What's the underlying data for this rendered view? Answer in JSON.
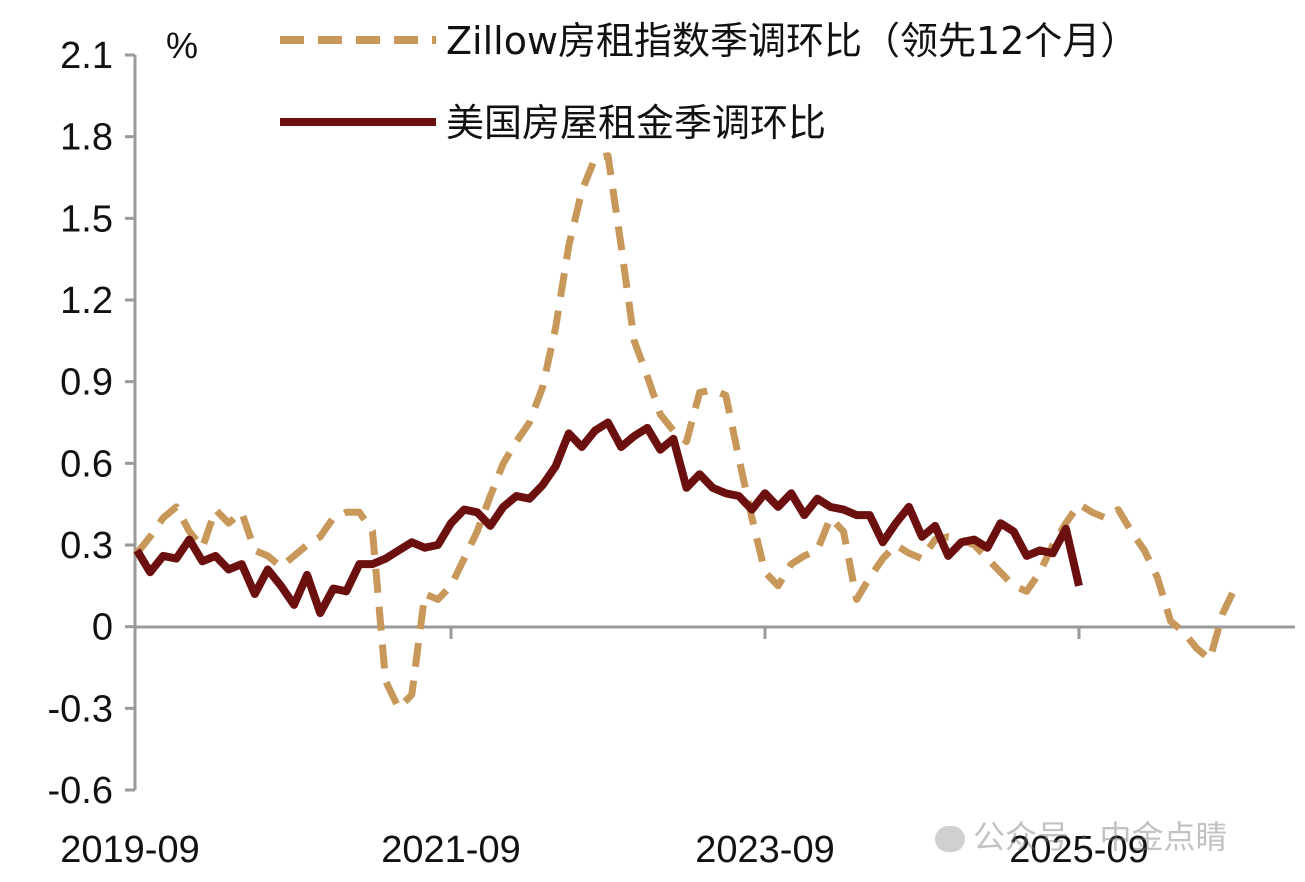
{
  "chart_data": {
    "type": "line",
    "unit": "%",
    "ylim": [
      -0.6,
      2.1
    ],
    "yticks": [
      "2.1",
      "1.8",
      "1.5",
      "1.2",
      "0.9",
      "0.6",
      "0.3",
      "0",
      "-0.3",
      "-0.6"
    ],
    "ytick_values": [
      2.1,
      1.8,
      1.5,
      1.2,
      0.9,
      0.6,
      0.3,
      0,
      -0.3,
      -0.6
    ],
    "xticks": [
      "2019-09",
      "2021-09",
      "2023-09",
      "2025-09"
    ],
    "x_range": [
      "2019-09",
      "2026-12"
    ],
    "grid": false,
    "legend_position": "top",
    "series": [
      {
        "name": "Zillow房租指数季调环比（领先12个月）",
        "style": "dashed",
        "color": "#c8975a",
        "x_start": "2019-09",
        "values": [
          0.27,
          0.33,
          0.4,
          0.44,
          0.35,
          0.29,
          0.43,
          0.38,
          0.42,
          0.28,
          0.26,
          0.22,
          0.26,
          0.3,
          0.33,
          0.4,
          0.42,
          0.42,
          0.35,
          -0.2,
          -0.3,
          -0.25,
          0.12,
          0.1,
          0.15,
          0.25,
          0.35,
          0.48,
          0.6,
          0.68,
          0.75,
          0.88,
          1.1,
          1.4,
          1.6,
          1.72,
          1.73,
          1.4,
          1.05,
          0.92,
          0.78,
          0.72,
          0.68,
          0.86,
          0.87,
          0.85,
          0.62,
          0.4,
          0.2,
          0.15,
          0.23,
          0.26,
          0.28,
          0.4,
          0.35,
          0.1,
          0.18,
          0.25,
          0.3,
          0.27,
          0.25,
          0.32,
          0.33,
          0.32,
          0.3,
          0.25,
          0.2,
          0.15,
          0.13,
          0.2,
          0.3,
          0.38,
          0.45,
          0.42,
          0.4,
          0.43,
          0.35,
          0.28,
          0.18,
          0.02,
          -0.02,
          -0.08,
          -0.12,
          0.05,
          0.15
        ]
      },
      {
        "name": "美国房屋租金季调环比",
        "style": "solid",
        "color": "#6b0f0f",
        "x_start": "2019-09",
        "values": [
          0.28,
          0.2,
          0.26,
          0.25,
          0.32,
          0.24,
          0.26,
          0.21,
          0.23,
          0.12,
          0.21,
          0.15,
          0.08,
          0.19,
          0.05,
          0.14,
          0.13,
          0.23,
          0.23,
          0.25,
          0.28,
          0.31,
          0.29,
          0.3,
          0.38,
          0.43,
          0.42,
          0.37,
          0.44,
          0.48,
          0.47,
          0.52,
          0.59,
          0.71,
          0.66,
          0.72,
          0.75,
          0.66,
          0.7,
          0.73,
          0.65,
          0.69,
          0.51,
          0.56,
          0.51,
          0.49,
          0.48,
          0.43,
          0.49,
          0.44,
          0.49,
          0.41,
          0.47,
          0.44,
          0.43,
          0.41,
          0.41,
          0.31,
          0.38,
          0.44,
          0.33,
          0.37,
          0.26,
          0.31,
          0.32,
          0.29,
          0.38,
          0.35,
          0.26,
          0.28,
          0.27,
          0.36,
          0.15
        ]
      }
    ]
  },
  "watermark": {
    "text": "公众号 · 中金点睛"
  }
}
